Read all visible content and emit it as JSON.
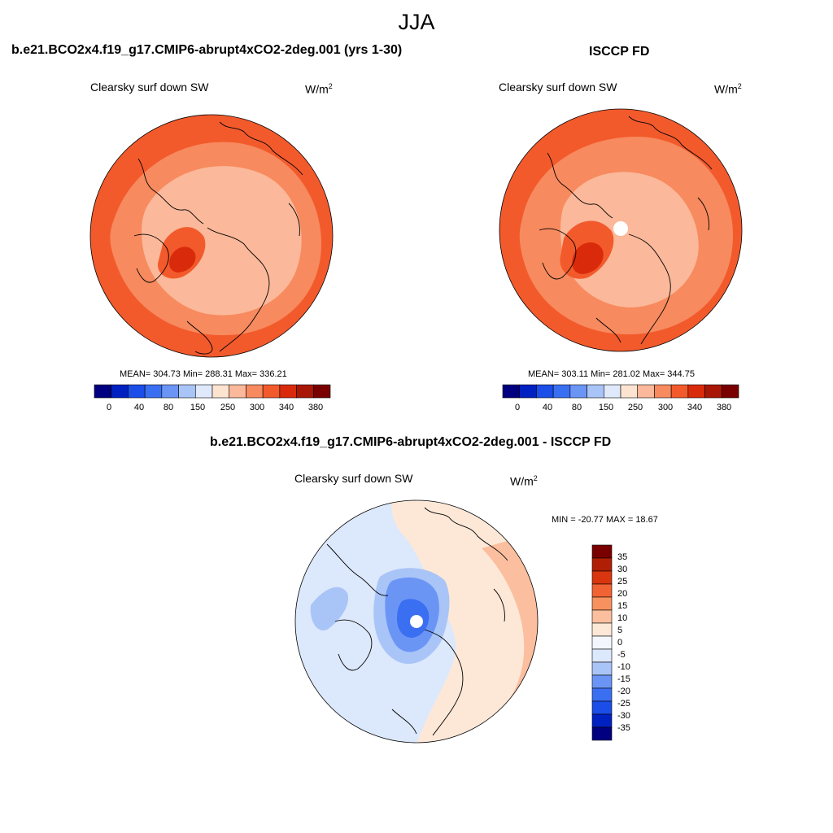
{
  "suptitle": "JJA",
  "colors": {
    "scale12": [
      "#000080",
      "#0021c2",
      "#1b4de8",
      "#3b6ff2",
      "#6b95f5",
      "#a9c4f7",
      "#dfe9fb",
      "#fde4d0",
      "#fbb89a",
      "#f78a5e",
      "#f25a2c",
      "#d92b0b",
      "#a81705",
      "#7a0000"
    ],
    "diff15": [
      "#000080",
      "#0021c2",
      "#1b4de8",
      "#3b6ff2",
      "#6b95f5",
      "#a9c4f7",
      "#dce8fb",
      "#f3f6fc",
      "#fde8d8",
      "#fbbf9f",
      "#f7925e",
      "#f26333",
      "#d9360f",
      "#b01f05",
      "#7a0000"
    ],
    "coast": "#000000"
  },
  "panels": [
    {
      "title": "b.e21.BCO2x4.f19_g17.CMIP6-abrupt4xCO2-2deg.001 (yrs 1-30)",
      "variable": "Clearsky surf down SW",
      "units_base": "W/m",
      "units_exp": "2",
      "stats": "MEAN= 304.73  Min= 288.31  Max= 336.21",
      "colorbar_labels": [
        "0",
        "40",
        "80",
        "150",
        "250",
        "300",
        "340",
        "380"
      ]
    },
    {
      "title": "ISCCP FD",
      "variable": "Clearsky surf down SW",
      "units_base": "W/m",
      "units_exp": "2",
      "stats": "MEAN= 303.11  Min= 281.02  Max= 344.75",
      "colorbar_labels": [
        "0",
        "40",
        "80",
        "150",
        "250",
        "300",
        "340",
        "380"
      ]
    }
  ],
  "difference": {
    "title": "b.e21.BCO2x4.f19_g17.CMIP6-abrupt4xCO2-2deg.001 - ISCCP FD",
    "variable": "Clearsky surf down SW",
    "units_base": "W/m",
    "units_exp": "2",
    "stats": "MIN = -20.77 MAX =  18.67",
    "colorbar_labels": [
      "35",
      "30",
      "25",
      "20",
      "15",
      "10",
      "5",
      "0",
      "-5",
      "-10",
      "-15",
      "-20",
      "-25",
      "-30",
      "-35"
    ]
  }
}
